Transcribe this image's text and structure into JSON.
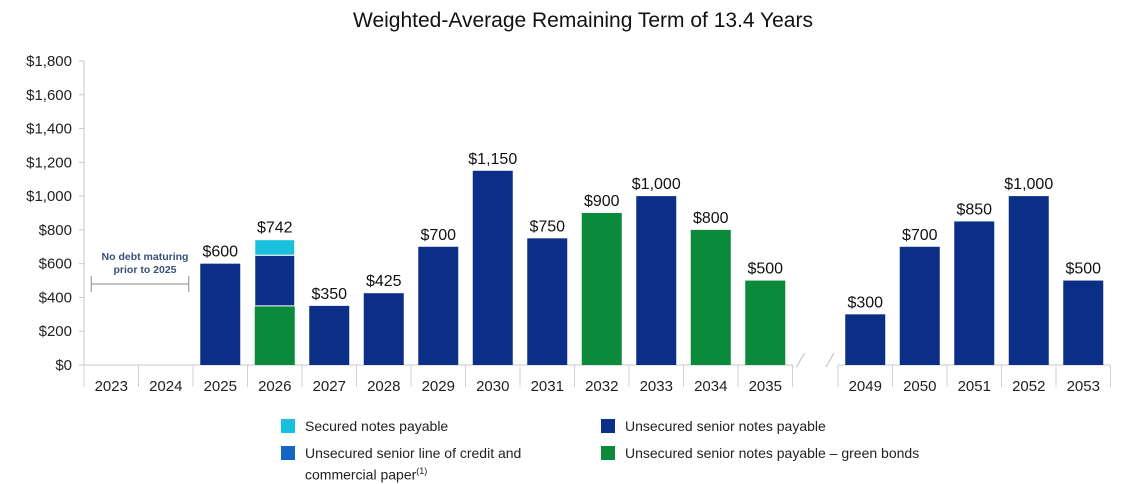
{
  "chart_data": {
    "type": "bar",
    "stacked": true,
    "title": "Weighted-Average Remaining Term of 13.4 Years",
    "xlabel": "",
    "ylabel": "",
    "ylim": [
      0,
      1800
    ],
    "yticks": [
      0,
      200,
      400,
      600,
      800,
      1000,
      1200,
      1400,
      1600,
      1800
    ],
    "ytick_labels": [
      "$0",
      "$200",
      "$400",
      "$600",
      "$800",
      "$1,000",
      "$1,200",
      "$1,400",
      "$1,600",
      "$1,800"
    ],
    "gridlines": false,
    "axis_break": "between 2035 and 2049",
    "annotation": {
      "text": "No debt maturing prior to 2025",
      "line1": "No debt maturing",
      "line2": "prior to 2025",
      "span": [
        "2023",
        "2024"
      ]
    },
    "categories": [
      "2023",
      "2024",
      "2025",
      "2026",
      "2027",
      "2028",
      "2029",
      "2030",
      "2031",
      "2032",
      "2033",
      "2034",
      "2035",
      "2049",
      "2050",
      "2051",
      "2052",
      "2053"
    ],
    "series": [
      {
        "name": "Unsecured senior notes payable – green bonds",
        "color": "#0a8a3a",
        "values": [
          0,
          0,
          0,
          350,
          0,
          0,
          0,
          0,
          0,
          900,
          0,
          800,
          500,
          0,
          0,
          0,
          0,
          0
        ]
      },
      {
        "name": "Unsecured senior notes payable",
        "color": "#0b2f86",
        "values": [
          0,
          0,
          600,
          300,
          350,
          425,
          700,
          1150,
          750,
          0,
          1000,
          0,
          0,
          300,
          700,
          850,
          1000,
          500
        ]
      },
      {
        "name": "Unsecured senior line of credit and commercial paper",
        "color": "#1566c4",
        "values": [
          0,
          0,
          0,
          0,
          0,
          0,
          0,
          0,
          0,
          0,
          0,
          0,
          0,
          0,
          0,
          0,
          0,
          0
        ]
      },
      {
        "name": "Secured notes payable",
        "color": "#19c0de",
        "values": [
          0,
          0,
          0,
          92,
          0,
          0,
          0,
          0,
          0,
          0,
          0,
          0,
          0,
          0,
          0,
          0,
          0,
          0
        ]
      }
    ],
    "totals": [
      null,
      null,
      600,
      742,
      350,
      425,
      700,
      1150,
      750,
      900,
      1000,
      800,
      500,
      300,
      700,
      850,
      1000,
      500
    ],
    "total_labels": [
      "",
      "",
      "$600",
      "$742",
      "$350",
      "$425",
      "$700",
      "$1,150",
      "$750",
      "$900",
      "$1,000",
      "$800",
      "$500",
      "$300",
      "$700",
      "$850",
      "$1,000",
      "$500"
    ],
    "legend": {
      "position": "bottom",
      "items": [
        {
          "label": "Secured notes payable",
          "color": "#19c0de"
        },
        {
          "label": "Unsecured senior notes payable",
          "color": "#0b2f86"
        },
        {
          "label": "Unsecured senior line of credit and",
          "label2": "commercial paper",
          "footnote": "(1)",
          "color": "#1566c4"
        },
        {
          "label": "Unsecured senior notes payable – green bonds",
          "color": "#0a8a3a"
        }
      ]
    }
  }
}
